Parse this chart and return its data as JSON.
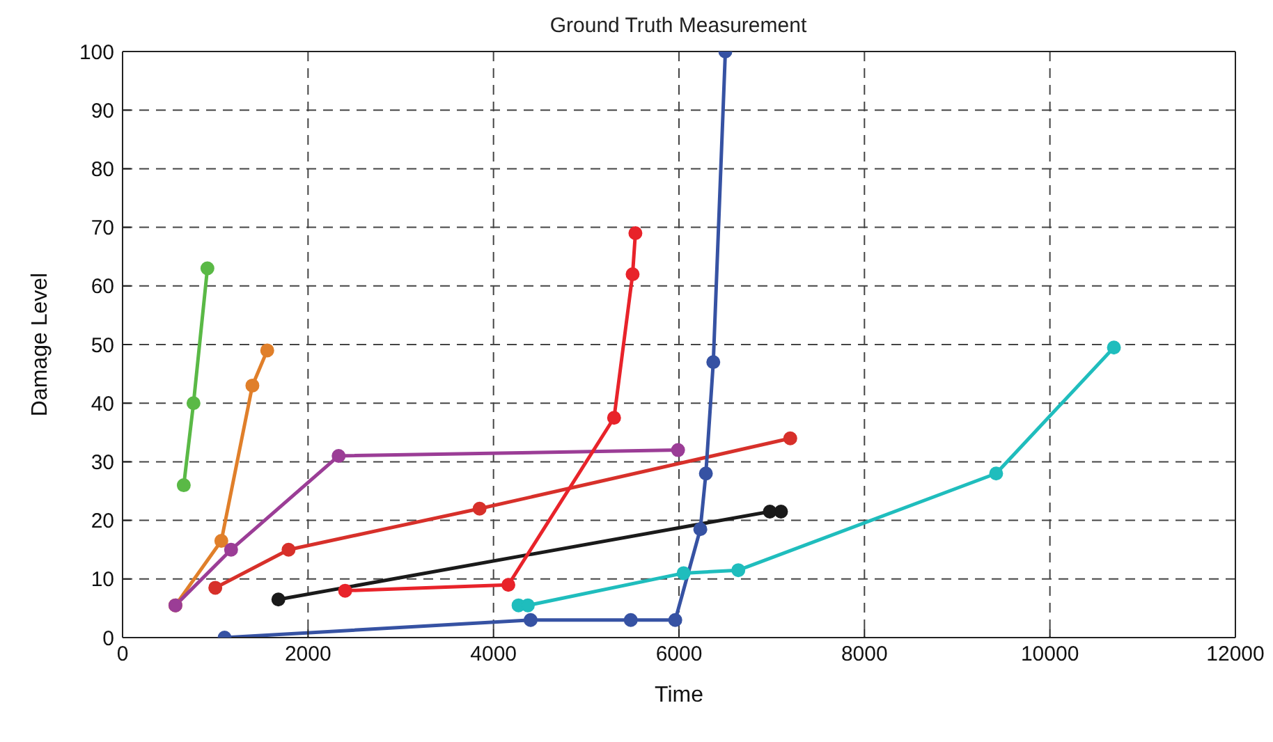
{
  "chart_data": {
    "type": "line",
    "title": "Ground Truth Measurement",
    "xlabel": "Time",
    "ylabel": "Damage Level",
    "xlim": [
      0,
      12000
    ],
    "xticks": [
      0,
      2000,
      4000,
      6000,
      8000,
      10000,
      12000
    ],
    "ylim": [
      0,
      100
    ],
    "yticks": [
      0,
      10,
      20,
      30,
      40,
      50,
      60,
      70,
      80,
      90,
      100
    ],
    "grid": true,
    "marker": "circle",
    "line_style": "solid",
    "series": [
      {
        "color": "#5ab946",
        "x": [
          660,
          765,
          915
        ],
        "values": [
          26,
          40,
          63
        ]
      },
      {
        "color": "#e07f2a",
        "x": [
          570,
          1065,
          1400,
          1560
        ],
        "values": [
          5.5,
          16.5,
          43,
          49
        ]
      },
      {
        "color": "#9b3d96",
        "x": [
          570,
          1170,
          2330,
          5990
        ],
        "values": [
          5.5,
          15,
          31,
          32
        ]
      },
      {
        "color": "#d7302a",
        "x": [
          1000,
          1790,
          3850,
          7200
        ],
        "values": [
          8.5,
          15,
          22,
          34
        ]
      },
      {
        "color": "#1a1a1a",
        "x": [
          1680,
          6980,
          7100
        ],
        "values": [
          6.5,
          21.5,
          21.5
        ]
      },
      {
        "color": "#e8232a",
        "x": [
          2400,
          4160,
          5300,
          5500,
          5530
        ],
        "values": [
          8,
          9,
          37.5,
          62,
          69
        ]
      },
      {
        "color": "#3652a3",
        "x": [
          1100,
          4400,
          5480,
          5960,
          6230,
          6290,
          6370,
          6500
        ],
        "values": [
          0,
          3,
          3,
          3,
          18.5,
          28,
          47,
          100
        ]
      },
      {
        "color": "#1fbdbd",
        "x": [
          4270,
          4370,
          6050,
          6640,
          9420,
          10690
        ],
        "values": [
          5.5,
          5.5,
          11,
          11.5,
          28,
          49.5
        ]
      }
    ]
  }
}
